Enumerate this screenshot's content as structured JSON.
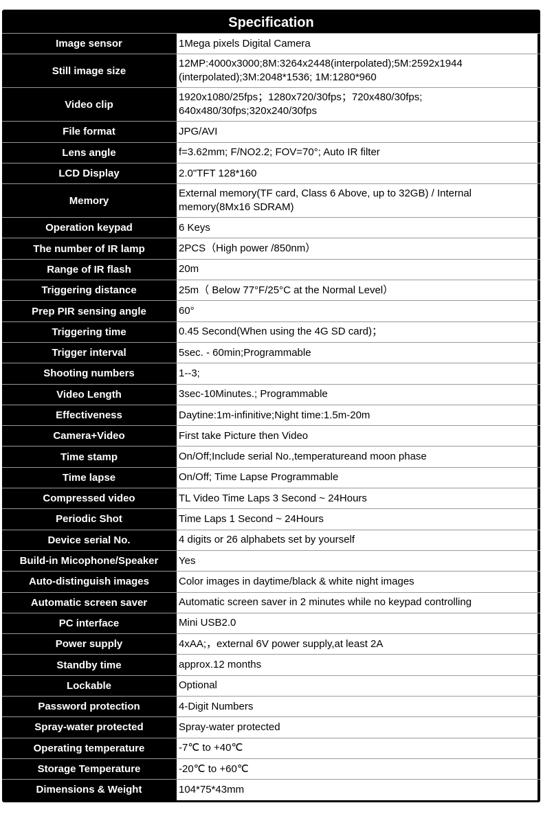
{
  "title": "Specification",
  "rows": [
    {
      "label": "Image sensor",
      "value": "1Mega pixels Digital Camera"
    },
    {
      "label": "Still image size",
      "value": "12MP:4000x3000;8M:3264x2448(interpolated);5M:2592x1944 (interpolated);3M:2048*1536; 1M:1280*960",
      "tall": true
    },
    {
      "label": "Video clip",
      "value": "1920x1080/25fps；1280x720/30fps；720x480/30fps; 640x480/30fps;320x240/30fps",
      "tall": true
    },
    {
      "label": "File format",
      "value": "JPG/AVI"
    },
    {
      "label": "Lens angle",
      "value": "f=3.62mm; F/NO2.2; FOV=70°; Auto IR filter"
    },
    {
      "label": "LCD Display",
      "value": "2.0\"TFT  128*160"
    },
    {
      "label": "Memory",
      "value": "External memory(TF card, Class 6 Above, up to 32GB) / Internal memory(8Mx16 SDRAM)",
      "tall": true
    },
    {
      "label": "Operation keypad",
      "value": "6 Keys"
    },
    {
      "label": "The number of IR lamp",
      "value": "2PCS（High power /850nm）"
    },
    {
      "label": "Range of IR flash",
      "value": "20m"
    },
    {
      "label": "Triggering distance",
      "value": "25m（ Below 77°F/25°C at the Normal Level）"
    },
    {
      "label": "Prep PIR sensing angle",
      "value": "60°"
    },
    {
      "label": "Triggering time",
      "value": "0.45 Second(When using the 4G SD card)；"
    },
    {
      "label": "Trigger interval",
      "value": "5sec. - 60min;Programmable"
    },
    {
      "label": "Shooting numbers",
      "value": "1--3;"
    },
    {
      "label": "Video Length",
      "value": "3sec-10Minutes.; Programmable"
    },
    {
      "label": "Effectiveness",
      "value": "Daytine:1m-infinitive;Night time:1.5m-20m"
    },
    {
      "label": "Camera+Video",
      "value": "First take Picture then Video"
    },
    {
      "label": "Time stamp",
      "value": "On/Off;Include serial No.,temperatureand moon phase"
    },
    {
      "label": "Time lapse",
      "value": "On/Off; Time Lapse Programmable"
    },
    {
      "label": "Compressed video",
      "value": "TL Video  Time Laps 3 Second ~ 24Hours"
    },
    {
      "label": "Periodic Shot",
      "value": "Time Laps 1 Second ~ 24Hours"
    },
    {
      "label": "Device serial No.",
      "value": "4 digits or 26 alphabets set by yourself"
    },
    {
      "label": "Build-in Micophone/Speaker",
      "value": "Yes"
    },
    {
      "label": "Auto-distinguish images",
      "value": "Color images in daytime/black & white night images"
    },
    {
      "label": "Automatic screen saver",
      "value": "Automatic screen saver in 2 minutes while no keypad controlling"
    },
    {
      "label": "PC interface",
      "value": "Mini USB2.0"
    },
    {
      "label": "Power supply",
      "value": "4xAA;，external 6V power supply,at least 2A"
    },
    {
      "label": "Standby time",
      "value": "approx.12 months"
    },
    {
      "label": "Lockable",
      "value": "Optional"
    },
    {
      "label": "Password protection",
      "value": "4-Digit Numbers"
    },
    {
      "label": "Spray-water protected",
      "value": "Spray-water protected"
    },
    {
      "label": "Operating temperature",
      "value": "-7℃ to +40℃"
    },
    {
      "label": "Storage Temperature",
      "value": "-20℃ to +60℃"
    },
    {
      "label": "Dimensions & Weight",
      "value": "104*75*43mm"
    }
  ]
}
